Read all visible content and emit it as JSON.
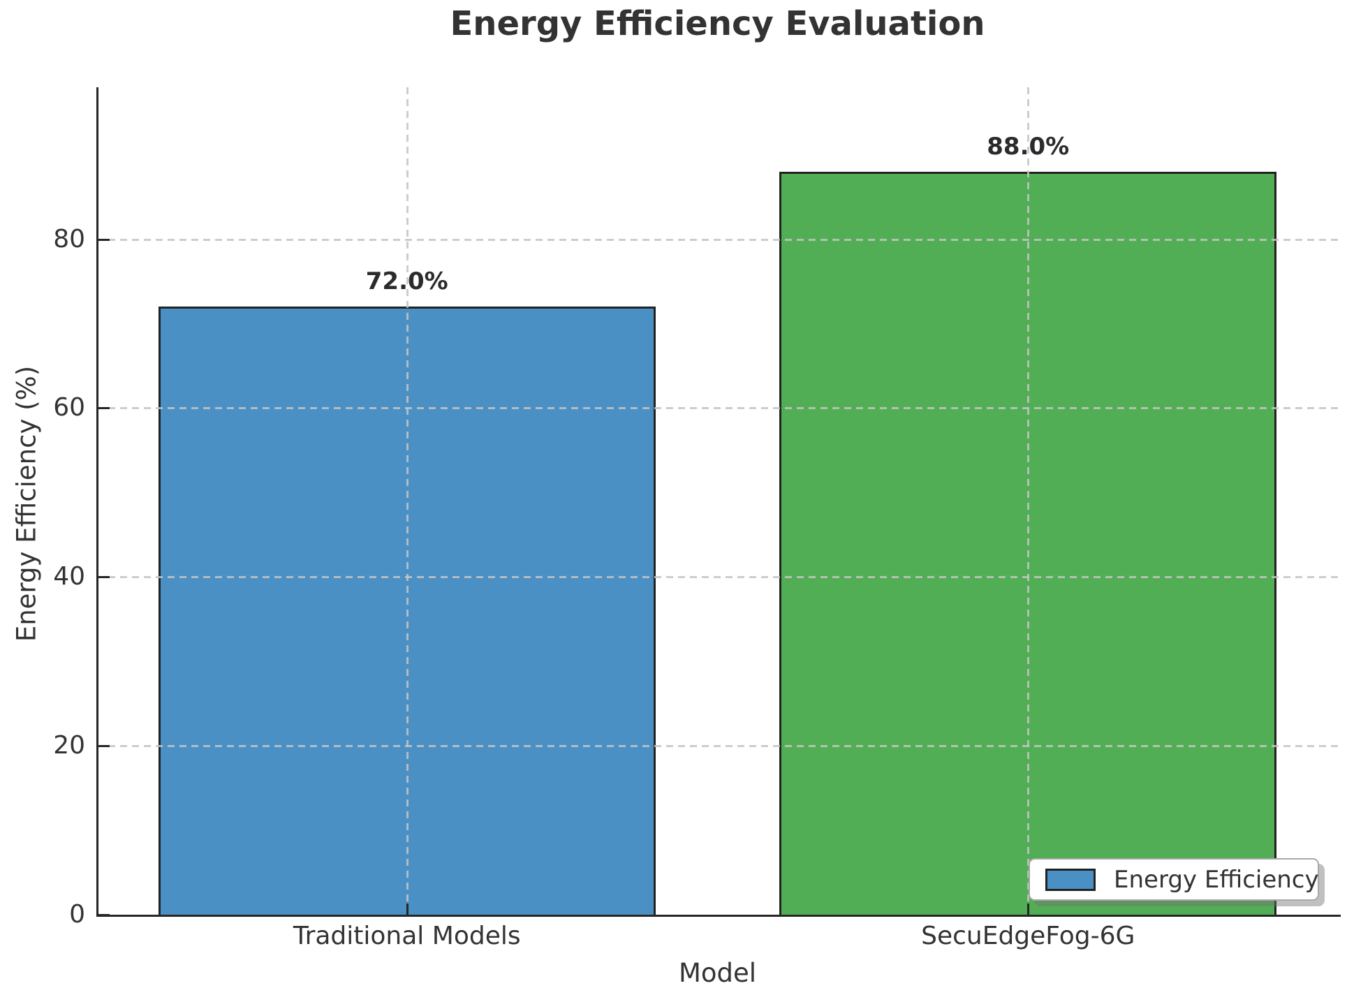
{
  "title": "Energy Efficiency Evaluation",
  "colors": {
    "bar_traditional": "#4a90c4",
    "bar_secuedgefog": "#52ae55",
    "bar_edge": "#222222",
    "grid": "#c4c4c4",
    "spine": "#262626",
    "text": "#333333",
    "legend_shadow": "#737373"
  },
  "chart_data": {
    "type": "bar",
    "title": "Energy Efficiency Evaluation",
    "categories": [
      "Traditional Models",
      "SecuEdgeFog-6G"
    ],
    "values": [
      72.0,
      88.0
    ],
    "value_labels": [
      "72.0%",
      "88.0%"
    ],
    "bar_colors": [
      "#4a90c4",
      "#52ae55"
    ],
    "xlabel": "Model",
    "ylabel": "Energy Efficiency (%)",
    "yticks": [
      0,
      20,
      40,
      60,
      80
    ],
    "ytick_labels": [
      "0",
      "20",
      "40",
      "60",
      "80"
    ],
    "ylim": [
      0,
      98
    ],
    "bar_width_fraction": 0.8,
    "grid": "dashed, drawn above bars",
    "legend": {
      "label": "Energy Efficiency",
      "swatch_color": "#4a90c4",
      "position": "lower right"
    }
  }
}
